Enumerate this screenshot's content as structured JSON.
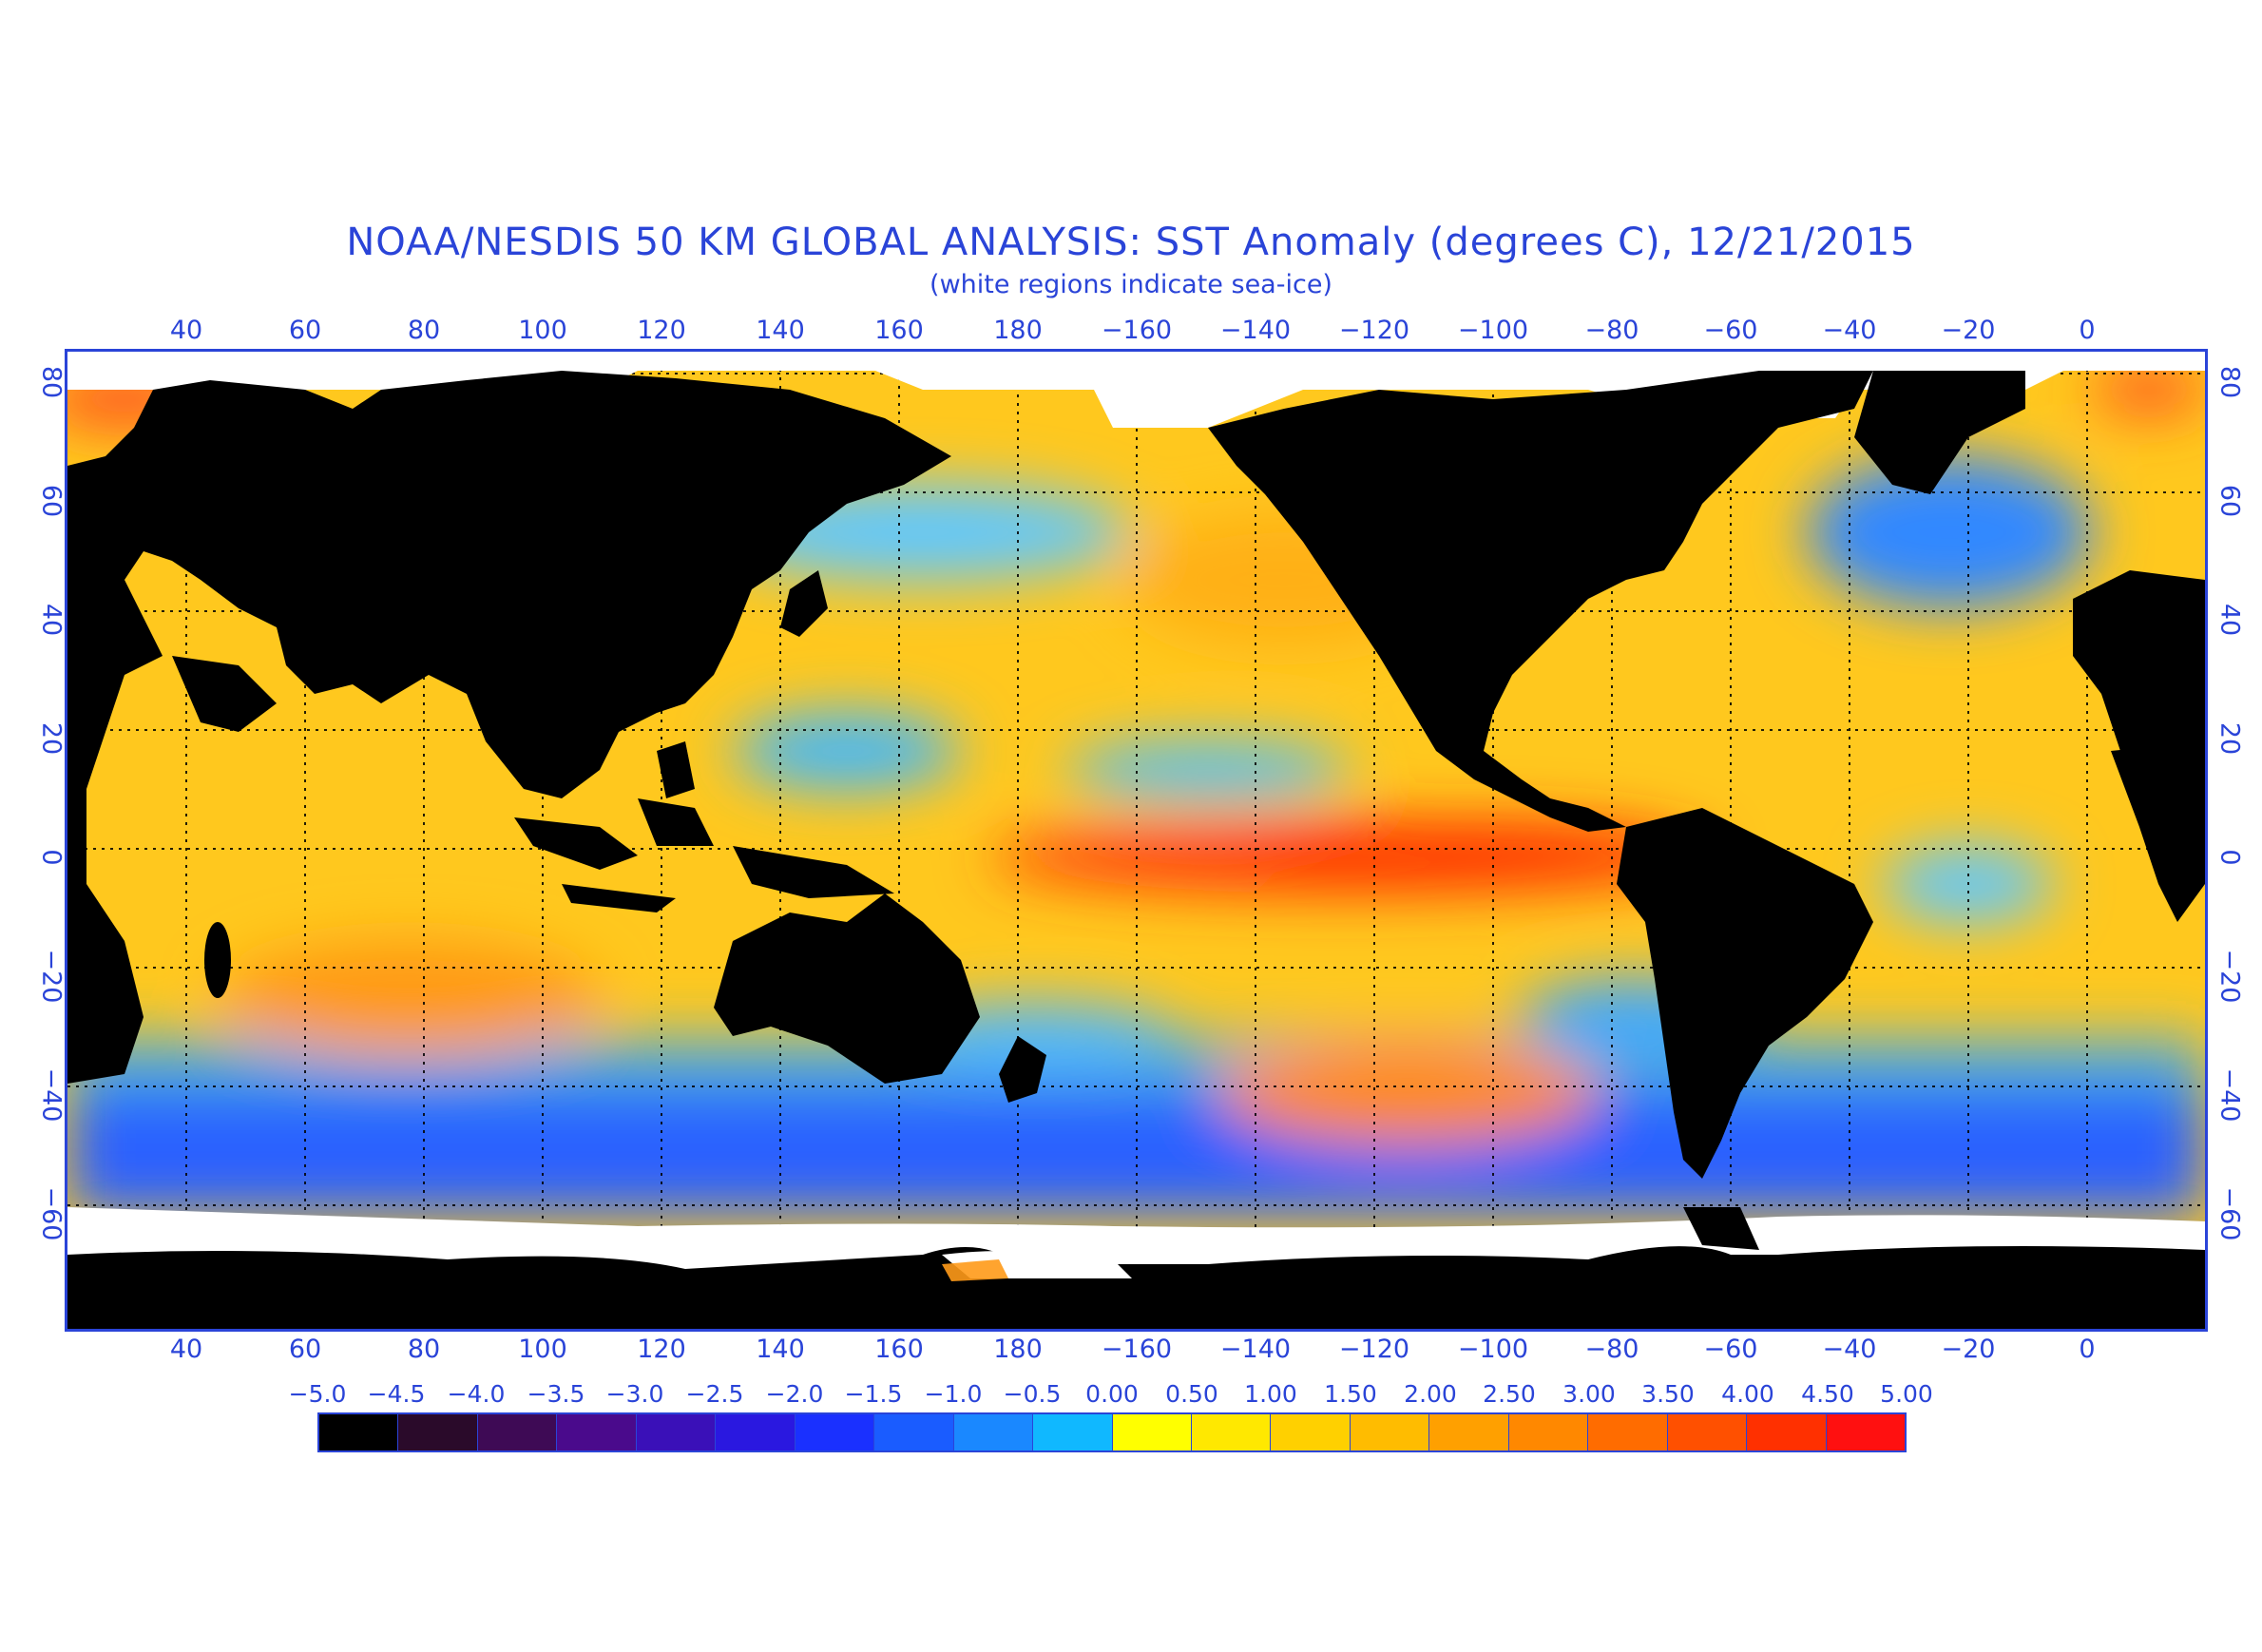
{
  "title": "NOAA/NESDIS 50 KM GLOBAL ANALYSIS: SST Anomaly (degrees C), 12/21/2015",
  "subtitle": "(white regions indicate sea-ice)",
  "longitude_labels": [
    "40",
    "60",
    "80",
    "100",
    "120",
    "140",
    "160",
    "180",
    "−160",
    "−140",
    "−120",
    "−100",
    "−80",
    "−60",
    "−40",
    "−20",
    "0"
  ],
  "latitude_labels": [
    "80",
    "60",
    "40",
    "20",
    "0",
    "−20",
    "−40",
    "−60"
  ],
  "colorbar": {
    "tick_labels": [
      "−5.0",
      "−4.5",
      "−4.0",
      "−3.5",
      "−3.0",
      "−2.5",
      "−2.0",
      "−1.5",
      "−1.0",
      "−0.5",
      "0.00",
      "0.50",
      "1.00",
      "1.50",
      "2.00",
      "2.50",
      "3.00",
      "3.50",
      "4.00",
      "4.50",
      "5.00"
    ],
    "colors": [
      "#000000",
      "#2a0a2a",
      "#3e0a55",
      "#4a0a8c",
      "#3a10b8",
      "#2a18e0",
      "#1a30ff",
      "#1a5cff",
      "#1a88ff",
      "#10b8ff",
      "#00e0ff",
      "#ffff00",
      "#ffe800",
      "#ffd000",
      "#ffbc00",
      "#ffa000",
      "#ff8800",
      "#ff6c00",
      "#ff5000",
      "#ff3000",
      "#ff1010"
    ]
  },
  "map_colors": {
    "land": "#000000",
    "sea_ice": "#ffffff",
    "ocean_base": "#ffc81e",
    "warm_anomaly": "#ff5a14",
    "cool_anomaly": "#28a0ff",
    "very_cool_anomaly": "#2040ff"
  }
}
